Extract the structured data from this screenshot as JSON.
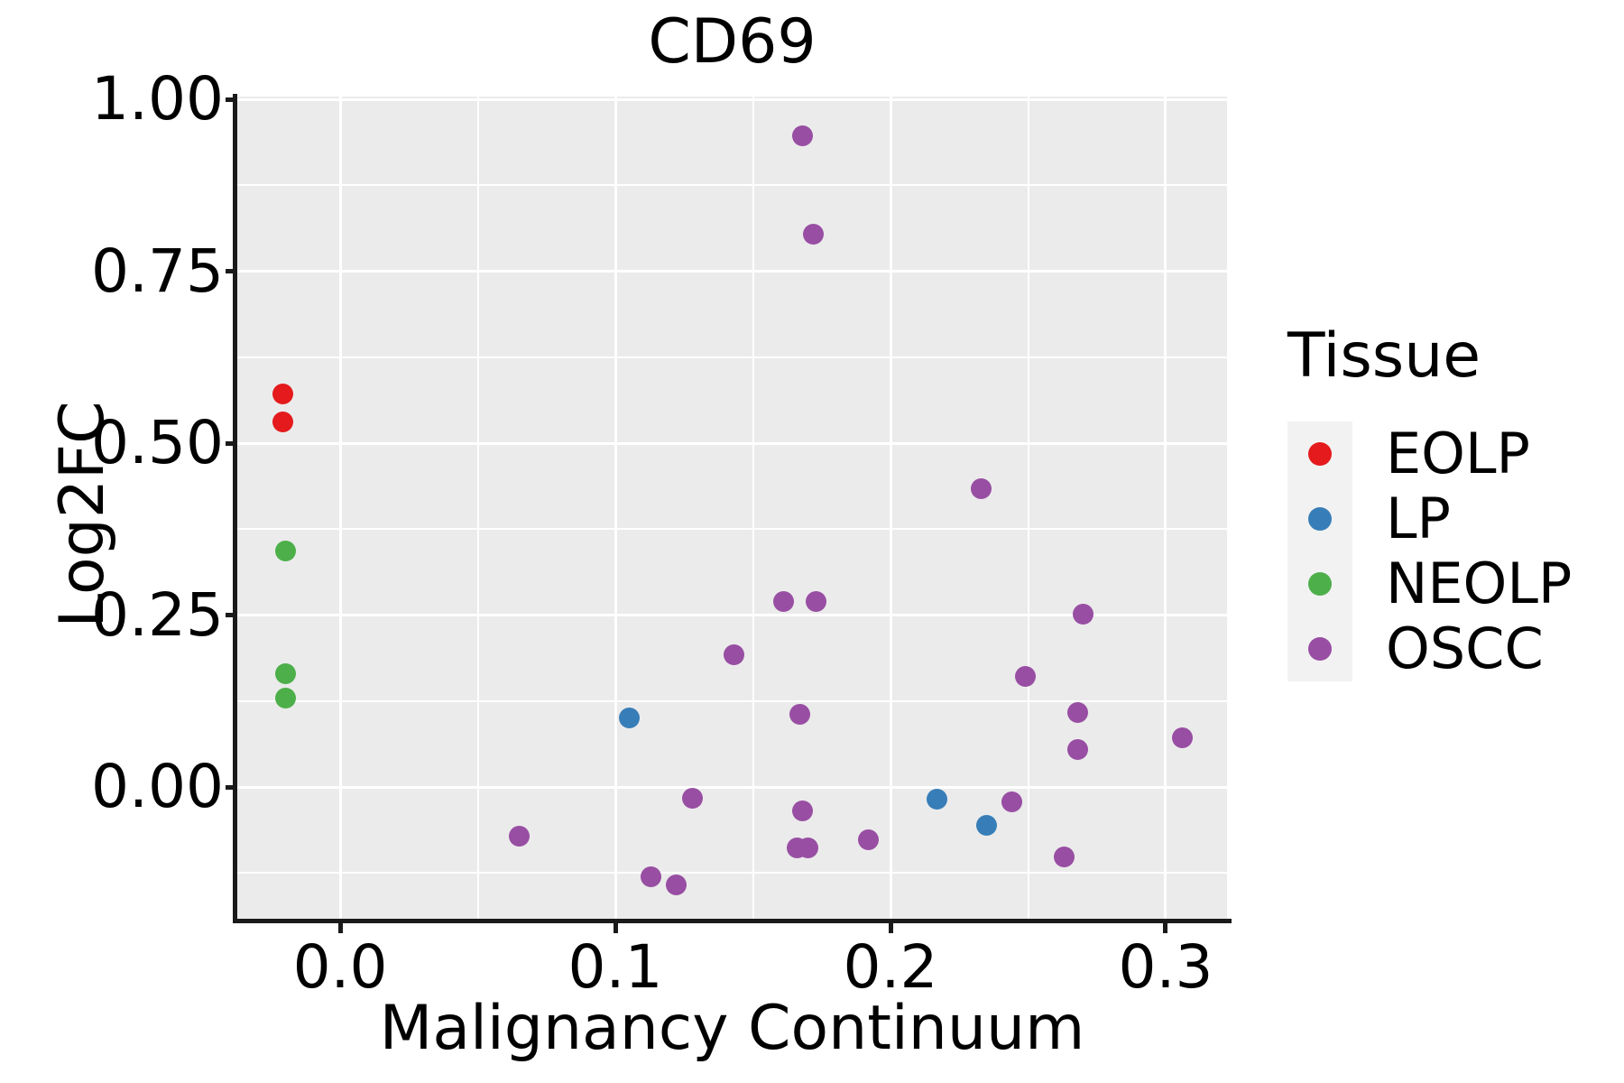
{
  "chart_data": {
    "type": "scatter",
    "title": "CD69",
    "xlabel": "Malignancy Continuum",
    "ylabel": "Log2FC",
    "legend_title": "Tissue",
    "legend_position": "right",
    "grid": true,
    "panel_background": "#EBEBEB",
    "legend_key_background": "#F2F2F2",
    "xlim": [
      -0.0374,
      0.3223
    ],
    "ylim": [
      -0.194,
      1.004
    ],
    "x_ticks": [
      0.0,
      0.1,
      0.2,
      0.3
    ],
    "x_tick_labels": [
      "0.0",
      "0.1",
      "0.2",
      "0.3"
    ],
    "x_minor_gridlines": [
      0.05,
      0.15,
      0.25
    ],
    "y_ticks": [
      0.0,
      0.25,
      0.5,
      0.75,
      1.0
    ],
    "y_tick_labels": [
      "0.00",
      "0.25",
      "0.50",
      "0.75",
      "1.00"
    ],
    "y_minor_gridlines": [
      -0.125,
      0.125,
      0.375,
      0.625,
      0.875
    ],
    "series": [
      {
        "name": "EOLP",
        "color": "#E41A1C",
        "points": [
          [
            -0.021,
            0.571
          ],
          [
            -0.021,
            0.531
          ]
        ]
      },
      {
        "name": "LP",
        "color": "#377EB8",
        "points": [
          [
            0.105,
            0.1
          ],
          [
            0.217,
            -0.017
          ],
          [
            0.235,
            -0.055
          ]
        ]
      },
      {
        "name": "NEOLP",
        "color": "#4DAF4A",
        "points": [
          [
            -0.02,
            0.343
          ],
          [
            -0.02,
            0.165
          ],
          [
            -0.02,
            0.129
          ]
        ]
      },
      {
        "name": "OSCC",
        "color": "#984EA3",
        "points": [
          [
            0.168,
            0.947
          ],
          [
            0.172,
            0.804
          ],
          [
            0.233,
            0.434
          ],
          [
            0.161,
            0.27
          ],
          [
            0.173,
            0.27
          ],
          [
            0.27,
            0.252
          ],
          [
            0.143,
            0.192
          ],
          [
            0.249,
            0.161
          ],
          [
            0.167,
            0.106
          ],
          [
            0.268,
            0.108
          ],
          [
            0.268,
            0.054
          ],
          [
            0.306,
            0.072
          ],
          [
            0.128,
            -0.016
          ],
          [
            0.244,
            -0.021
          ],
          [
            0.168,
            -0.035
          ],
          [
            0.065,
            -0.071
          ],
          [
            0.192,
            -0.076
          ],
          [
            0.166,
            -0.089
          ],
          [
            0.17,
            -0.088
          ],
          [
            0.263,
            -0.102
          ],
          [
            0.113,
            -0.13
          ],
          [
            0.122,
            -0.142
          ]
        ]
      }
    ]
  }
}
